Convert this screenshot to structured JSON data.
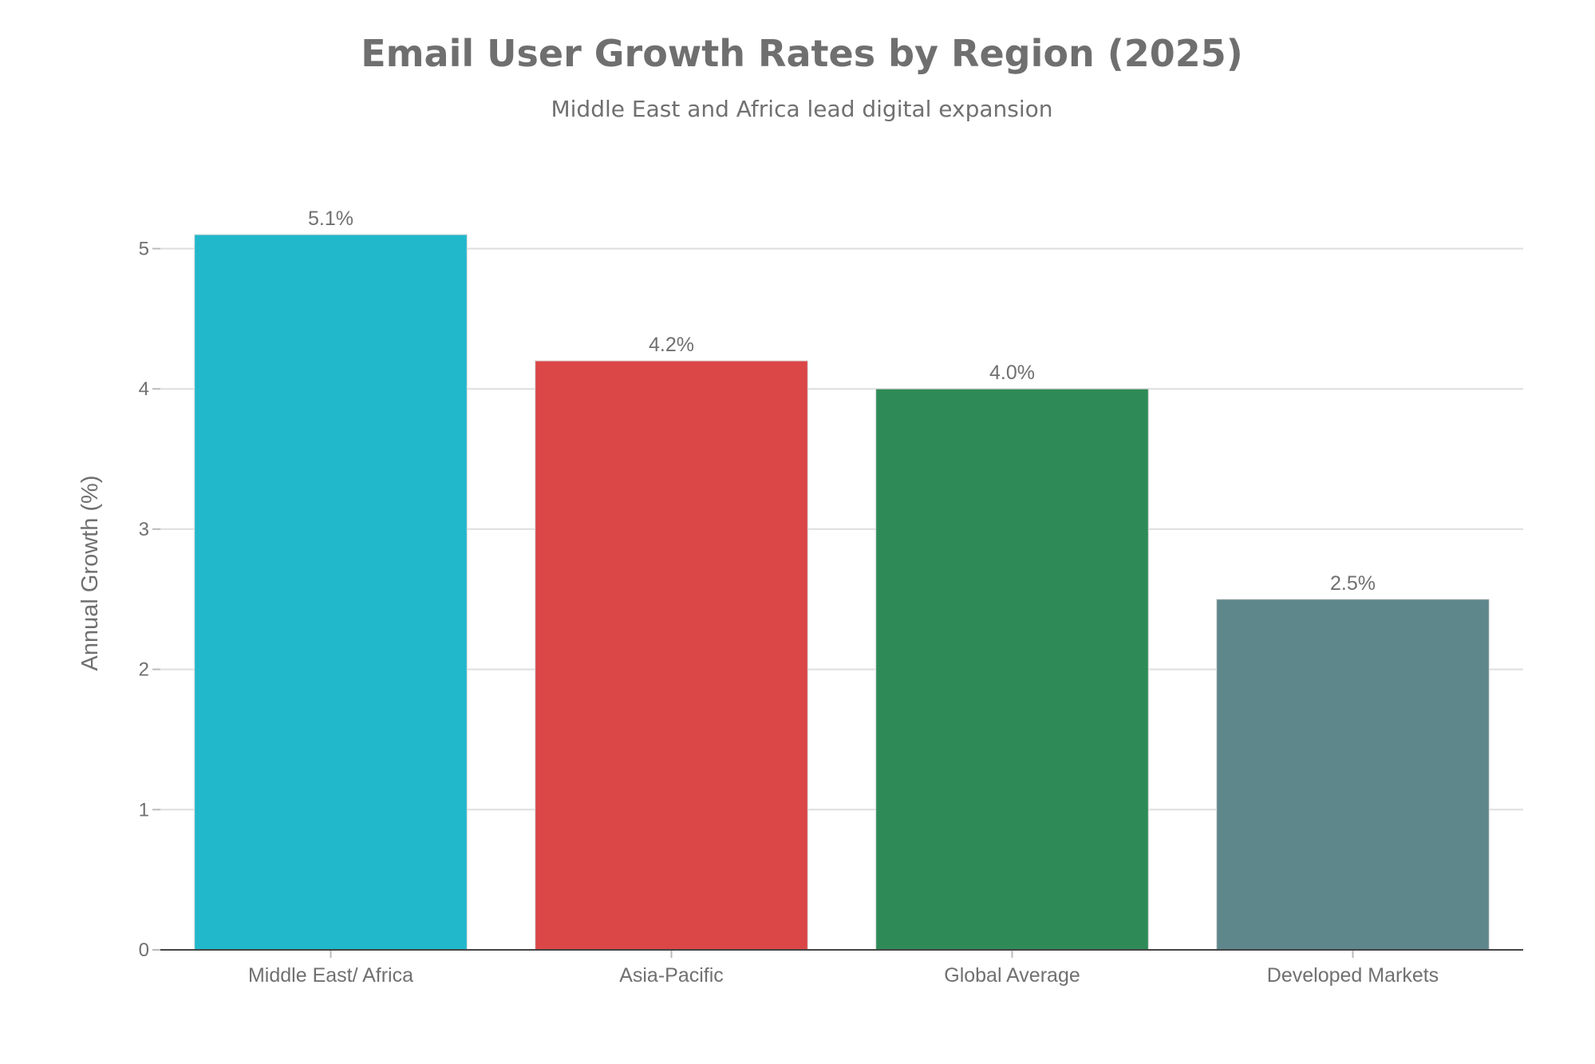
{
  "chart_data": {
    "type": "bar",
    "title": "Email User Growth Rates by Region (2025)",
    "subtitle": "Middle East and Africa lead digital expansion",
    "xlabel": "",
    "ylabel": "Annual Growth (%)",
    "ylim": [
      0,
      5.1
    ],
    "yticks": [
      0,
      1,
      2,
      3,
      4,
      5
    ],
    "grid": true,
    "categories": [
      "Middle East/ Africa",
      "Asia-Pacific",
      "Global Average",
      "Developed Markets"
    ],
    "values": [
      5.1,
      4.2,
      4.0,
      2.5
    ],
    "data_labels": [
      "5.1%",
      "4.2%",
      "4.0%",
      "2.5%"
    ],
    "colors": [
      "#21b8cc",
      "#db4647",
      "#2e8b57",
      "#5e878c"
    ]
  }
}
